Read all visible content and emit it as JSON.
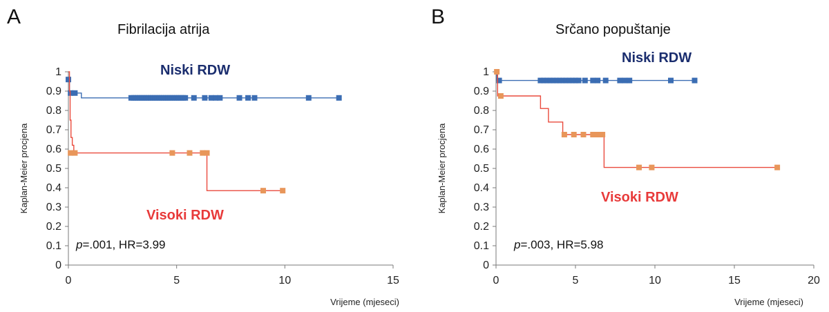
{
  "chart_data": [
    {
      "panel": "A",
      "type": "line",
      "title": "Fibrilacija atrija",
      "xlabel": "Vrijeme (mjeseci)",
      "ylabel": "Kaplan-Meier procjena",
      "xlim": [
        0,
        15
      ],
      "ylim": [
        0,
        1
      ],
      "xticks": [
        0,
        5,
        10,
        15
      ],
      "yticks": [
        0,
        0.1,
        0.2,
        0.3,
        0.4,
        0.5,
        0.6,
        0.7,
        0.8,
        0.9,
        1
      ],
      "grid": false,
      "annotation": {
        "p_symbol": "p",
        "text": "=.001, HR=3.99"
      },
      "series": [
        {
          "name": "Niski RDW",
          "color": "#3b6db3",
          "label_color": "#1a2d6e",
          "step": [
            [
              0,
              0.96
            ],
            [
              0.05,
              0.89
            ],
            [
              0.6,
              0.865
            ],
            [
              12.5,
              0.865
            ]
          ],
          "censored": [
            [
              0.0,
              0.96
            ],
            [
              0.1,
              0.89
            ],
            [
              0.3,
              0.89
            ],
            [
              2.9,
              0.865
            ],
            [
              3.0,
              0.865
            ],
            [
              3.1,
              0.865
            ],
            [
              3.2,
              0.865
            ],
            [
              3.3,
              0.865
            ],
            [
              3.4,
              0.865
            ],
            [
              3.5,
              0.865
            ],
            [
              3.6,
              0.865
            ],
            [
              3.7,
              0.865
            ],
            [
              3.8,
              0.865
            ],
            [
              3.9,
              0.865
            ],
            [
              4.0,
              0.865
            ],
            [
              4.1,
              0.865
            ],
            [
              4.2,
              0.865
            ],
            [
              4.3,
              0.865
            ],
            [
              4.4,
              0.865
            ],
            [
              4.5,
              0.865
            ],
            [
              4.6,
              0.865
            ],
            [
              4.7,
              0.865
            ],
            [
              4.8,
              0.865
            ],
            [
              4.9,
              0.865
            ],
            [
              5.0,
              0.865
            ],
            [
              5.1,
              0.865
            ],
            [
              5.2,
              0.865
            ],
            [
              5.3,
              0.865
            ],
            [
              5.4,
              0.865
            ],
            [
              5.8,
              0.865
            ],
            [
              6.3,
              0.865
            ],
            [
              6.6,
              0.865
            ],
            [
              6.8,
              0.865
            ],
            [
              7.0,
              0.865
            ],
            [
              7.9,
              0.865
            ],
            [
              8.3,
              0.865
            ],
            [
              8.6,
              0.865
            ],
            [
              11.1,
              0.865
            ],
            [
              12.5,
              0.865
            ]
          ]
        },
        {
          "name": "Visoki RDW",
          "color": "#ea4a3c",
          "marker_color": "#e8965a",
          "label_color": "#e83a3a",
          "step": [
            [
              0,
              1.0
            ],
            [
              0.05,
              0.9
            ],
            [
              0.08,
              0.75
            ],
            [
              0.12,
              0.66
            ],
            [
              0.18,
              0.62
            ],
            [
              0.25,
              0.58
            ],
            [
              6.4,
              0.58
            ],
            [
              6.4,
              0.385
            ],
            [
              9.9,
              0.385
            ]
          ],
          "censored": [
            [
              0.1,
              0.58
            ],
            [
              0.3,
              0.58
            ],
            [
              4.8,
              0.58
            ],
            [
              5.6,
              0.58
            ],
            [
              6.2,
              0.58
            ],
            [
              6.4,
              0.58
            ],
            [
              9.0,
              0.385
            ],
            [
              9.9,
              0.385
            ]
          ]
        }
      ]
    },
    {
      "panel": "B",
      "type": "line",
      "title": "Srčano popuštanje",
      "xlabel": "Vrijeme (mjeseci)",
      "ylabel": "Kaplan-Meier procjena",
      "xlim": [
        0,
        20
      ],
      "ylim": [
        0,
        1
      ],
      "xticks": [
        0,
        5,
        10,
        15,
        20
      ],
      "yticks": [
        0,
        0.1,
        0.2,
        0.3,
        0.4,
        0.5,
        0.6,
        0.7,
        0.8,
        0.9,
        1
      ],
      "grid": false,
      "annotation": {
        "p_symbol": "p",
        "text": "=.003, HR=5.98"
      },
      "series": [
        {
          "name": "Niski RDW",
          "color": "#3b6db3",
          "label_color": "#1a2d6e",
          "step": [
            [
              0,
              1.0
            ],
            [
              0.05,
              0.955
            ],
            [
              12.5,
              0.955
            ]
          ],
          "censored": [
            [
              0.2,
              0.955
            ],
            [
              2.8,
              0.955
            ],
            [
              3.0,
              0.955
            ],
            [
              3.2,
              0.955
            ],
            [
              3.4,
              0.955
            ],
            [
              3.6,
              0.955
            ],
            [
              3.8,
              0.955
            ],
            [
              4.0,
              0.955
            ],
            [
              4.2,
              0.955
            ],
            [
              4.4,
              0.955
            ],
            [
              4.6,
              0.955
            ],
            [
              4.8,
              0.955
            ],
            [
              5.0,
              0.955
            ],
            [
              5.2,
              0.955
            ],
            [
              5.6,
              0.955
            ],
            [
              6.1,
              0.955
            ],
            [
              6.4,
              0.955
            ],
            [
              6.9,
              0.955
            ],
            [
              7.8,
              0.955
            ],
            [
              8.1,
              0.955
            ],
            [
              8.4,
              0.955
            ],
            [
              11.0,
              0.955
            ],
            [
              12.5,
              0.955
            ]
          ]
        },
        {
          "name": "Visoki RDW",
          "color": "#ea4a3c",
          "marker_color": "#e8965a",
          "label_color": "#e83a3a",
          "step": [
            [
              0,
              1.0
            ],
            [
              0.1,
              0.875
            ],
            [
              2.8,
              0.875
            ],
            [
              2.8,
              0.81
            ],
            [
              3.3,
              0.81
            ],
            [
              3.3,
              0.74
            ],
            [
              4.2,
              0.74
            ],
            [
              4.2,
              0.675
            ],
            [
              6.8,
              0.675
            ],
            [
              6.8,
              0.505
            ],
            [
              17.7,
              0.505
            ]
          ],
          "censored": [
            [
              0.05,
              1.0
            ],
            [
              0.3,
              0.875
            ],
            [
              4.3,
              0.675
            ],
            [
              4.9,
              0.675
            ],
            [
              5.5,
              0.675
            ],
            [
              6.1,
              0.675
            ],
            [
              6.3,
              0.675
            ],
            [
              6.5,
              0.675
            ],
            [
              6.7,
              0.675
            ],
            [
              9.0,
              0.505
            ],
            [
              9.8,
              0.505
            ],
            [
              17.7,
              0.505
            ]
          ]
        }
      ]
    }
  ]
}
